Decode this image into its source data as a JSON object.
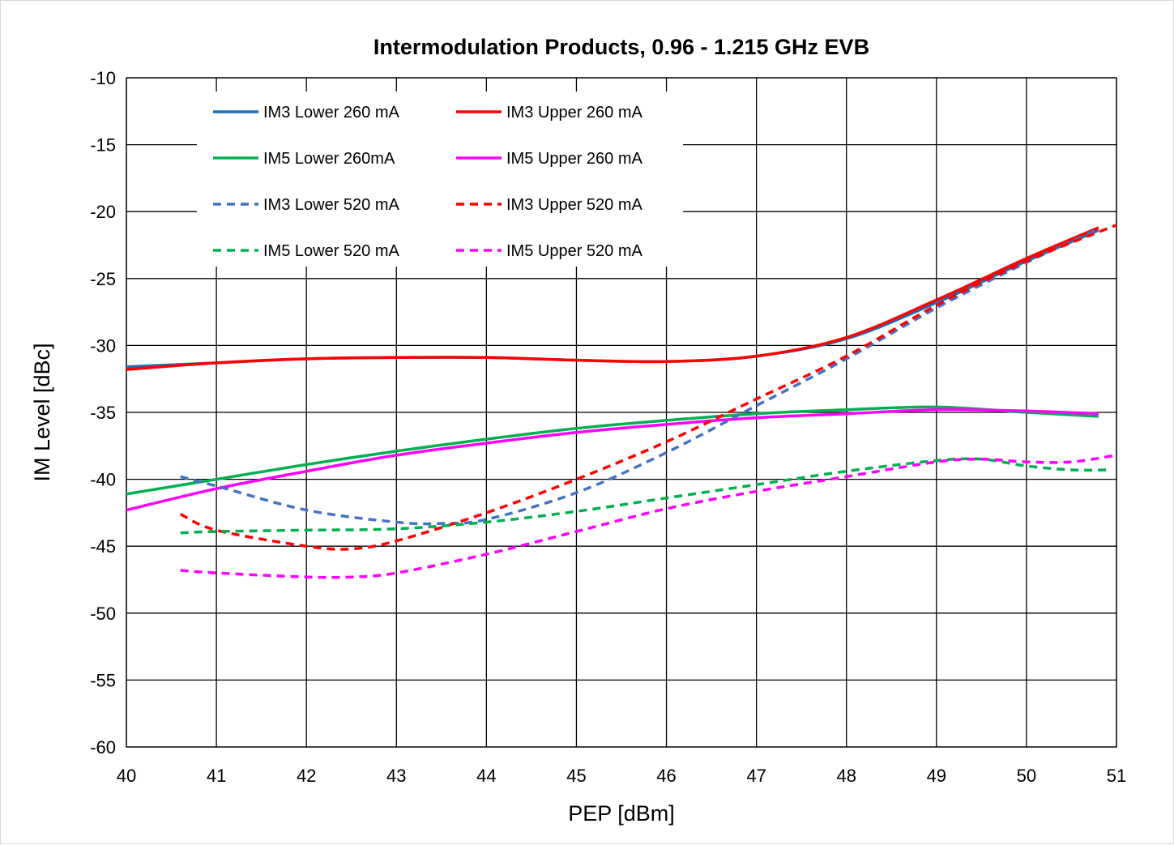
{
  "chart_data": {
    "type": "line",
    "title": "Intermodulation Products, 0.96 - 1.215 GHz EVB",
    "xlabel": "PEP [dBm]",
    "ylabel": "IM Level [dBc]",
    "xlim": [
      40,
      51
    ],
    "ylim": [
      -60,
      -10
    ],
    "xticks": [
      "40",
      "41",
      "42",
      "43",
      "44",
      "45",
      "46",
      "47",
      "48",
      "49",
      "50",
      "51"
    ],
    "yticks": [
      "-10",
      "-15",
      "-20",
      "-25",
      "-30",
      "-35",
      "-40",
      "-45",
      "-50",
      "-55",
      "-60"
    ],
    "grid": true,
    "legend_position": "top-left (inside plot, 2 columns)",
    "series": [
      {
        "name": "IM3 Lower 260 mA",
        "color": "#1f6fb5",
        "dash": "solid",
        "x": [
          40,
          41,
          42,
          43,
          44,
          45,
          46,
          47,
          48,
          49,
          50,
          50.8
        ],
        "y": [
          -31.6,
          -31.3,
          -31.0,
          -30.9,
          -30.9,
          -31.1,
          -31.2,
          -30.8,
          -29.5,
          -26.8,
          -23.7,
          -21.4
        ]
      },
      {
        "name": "IM3 Upper 260 mA",
        "color": "#ff0000",
        "dash": "solid",
        "x": [
          40,
          41,
          42,
          43,
          44,
          45,
          46,
          47,
          48,
          49,
          50,
          50.8
        ],
        "y": [
          -31.8,
          -31.3,
          -31.0,
          -30.9,
          -30.9,
          -31.1,
          -31.2,
          -30.8,
          -29.4,
          -26.6,
          -23.5,
          -21.2
        ]
      },
      {
        "name": "IM5 Lower 260mA",
        "color": "#00b050",
        "dash": "solid",
        "x": [
          40,
          41,
          42,
          43,
          44,
          45,
          46,
          47,
          48,
          49,
          50,
          50.8
        ],
        "y": [
          -41.1,
          -40.0,
          -38.9,
          -37.9,
          -37.0,
          -36.2,
          -35.6,
          -35.1,
          -34.8,
          -34.6,
          -35.0,
          -35.3
        ]
      },
      {
        "name": "IM5 Upper 260 mA",
        "color": "#ff00ff",
        "dash": "solid",
        "x": [
          40,
          41,
          42,
          43,
          44,
          45,
          46,
          47,
          48,
          49,
          50,
          50.8
        ],
        "y": [
          -42.3,
          -40.7,
          -39.4,
          -38.2,
          -37.3,
          -36.5,
          -35.9,
          -35.4,
          -35.1,
          -34.8,
          -34.9,
          -35.1
        ]
      },
      {
        "name": "IM3 Lower 520 mA",
        "color": "#4472c4",
        "dash": "dashed",
        "x": [
          40.6,
          41,
          42,
          43,
          43.5,
          44,
          45,
          46,
          47,
          48,
          49,
          50,
          50.8
        ],
        "y": [
          -39.8,
          -40.5,
          -42.3,
          -43.2,
          -43.3,
          -43.0,
          -41.0,
          -38.0,
          -34.5,
          -31.0,
          -27.2,
          -23.8,
          -21.3
        ]
      },
      {
        "name": "IM3 Upper 520 mA",
        "color": "#ff0000",
        "dash": "dashed",
        "x": [
          40.6,
          41,
          42,
          42.5,
          43,
          44,
          45,
          46,
          47,
          48,
          49,
          50,
          51
        ],
        "y": [
          -42.6,
          -43.8,
          -45.0,
          -45.2,
          -44.6,
          -42.5,
          -40.0,
          -37.2,
          -34.0,
          -30.8,
          -27.0,
          -23.7,
          -21.0
        ]
      },
      {
        "name": "IM5 Lower 520 mA",
        "color": "#00b050",
        "dash": "dashed",
        "x": [
          40.6,
          41,
          42,
          43,
          44,
          45,
          46,
          47,
          48,
          49,
          49.5,
          50,
          50.5,
          50.9
        ],
        "y": [
          -44.0,
          -43.9,
          -43.8,
          -43.7,
          -43.2,
          -42.4,
          -41.4,
          -40.4,
          -39.4,
          -38.6,
          -38.5,
          -39.0,
          -39.3,
          -39.3
        ]
      },
      {
        "name": "IM5 Upper 520 mA",
        "color": "#ff00ff",
        "dash": "dashed",
        "x": [
          40.6,
          41,
          42,
          42.5,
          43,
          44,
          45,
          46,
          47,
          48,
          49,
          49.5,
          50,
          50.5,
          51
        ],
        "y": [
          -46.8,
          -47.0,
          -47.3,
          -47.3,
          -47.0,
          -45.6,
          -43.9,
          -42.2,
          -40.9,
          -39.8,
          -38.7,
          -38.5,
          -38.7,
          -38.7,
          -38.2
        ]
      }
    ]
  }
}
